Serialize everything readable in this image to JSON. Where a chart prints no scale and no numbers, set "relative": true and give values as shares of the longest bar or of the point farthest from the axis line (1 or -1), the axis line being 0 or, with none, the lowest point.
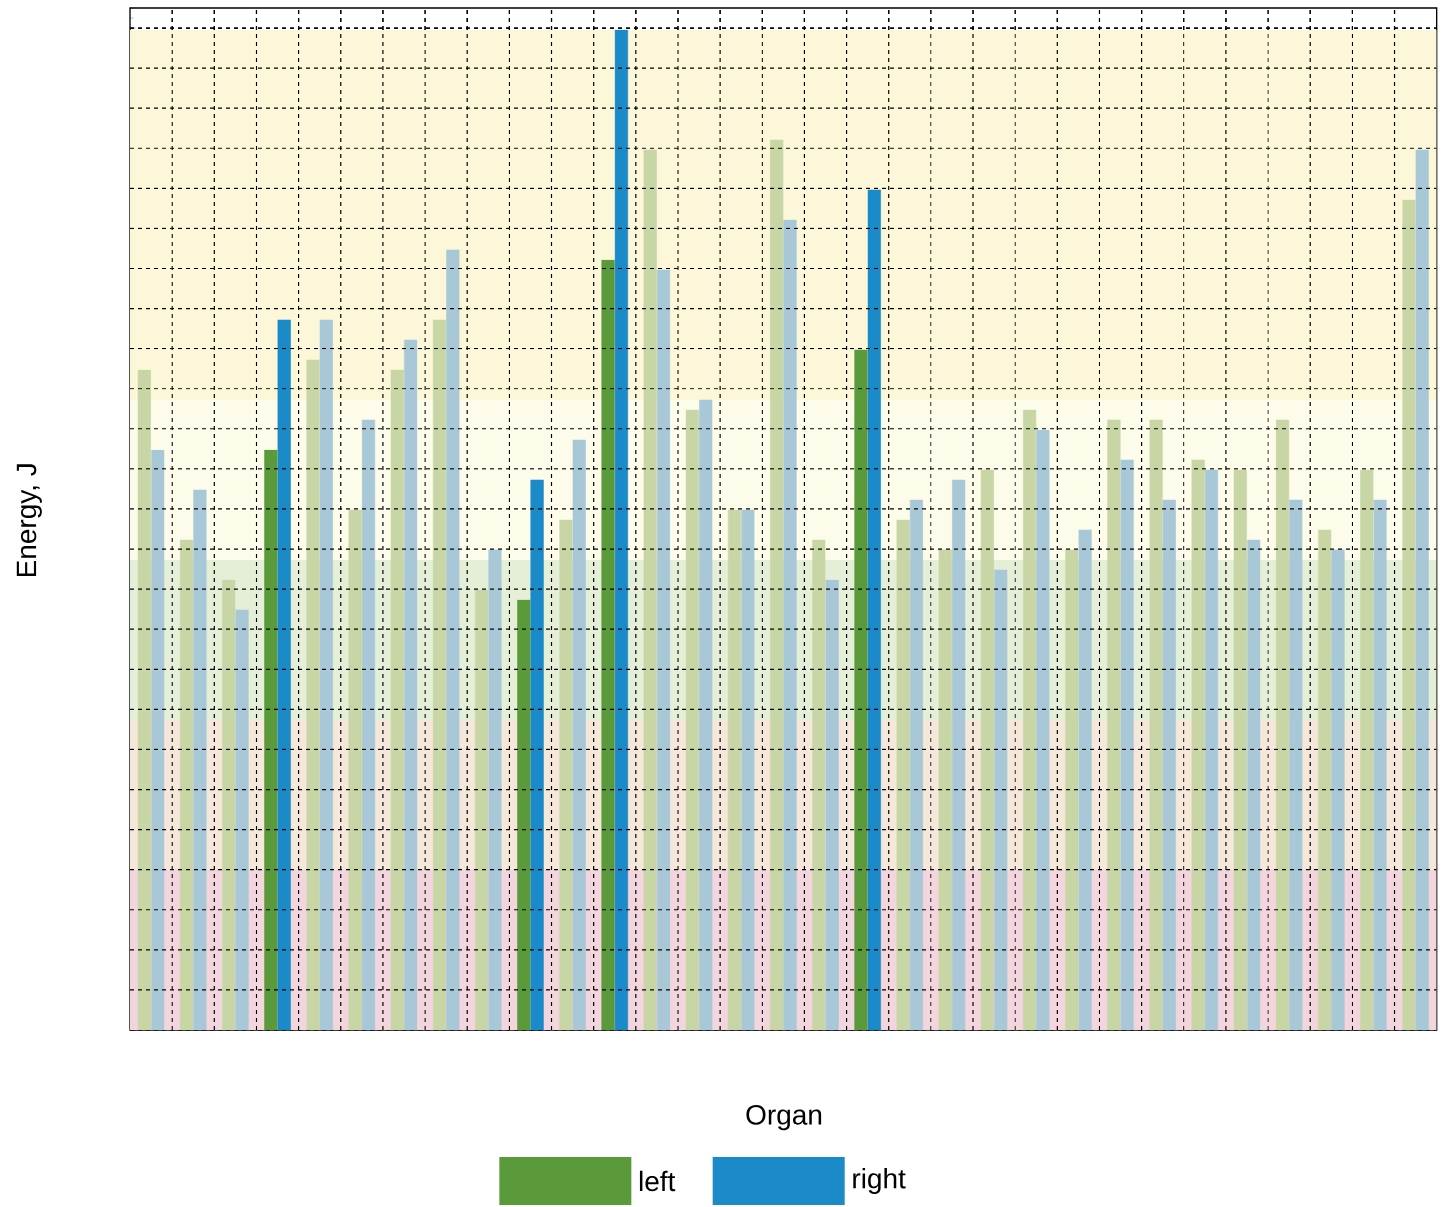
{
  "chart_data": {
    "type": "bar",
    "relative": true,
    "ylabel": "Energy, J",
    "legend_title": "Organ",
    "legend": "bottom",
    "grid": true,
    "categories": [
      null,
      null,
      null,
      null,
      null,
      null,
      null,
      null,
      null,
      null,
      null,
      null,
      null,
      null,
      null,
      null,
      null,
      null,
      null,
      null,
      null,
      null,
      null,
      null,
      null,
      null,
      null,
      null,
      null,
      null,
      null
    ],
    "series": [
      {
        "name": "left",
        "color": "#5a9a3a",
        "values": [
          0.66,
          0.49,
          0.45,
          0.58,
          0.67,
          0.52,
          0.66,
          0.71,
          0.44,
          0.43,
          0.51,
          0.77,
          0.88,
          0.62,
          0.52,
          0.89,
          0.49,
          0.68,
          0.51,
          0.48,
          0.56,
          0.62,
          0.48,
          0.61,
          0.61,
          0.57,
          0.56,
          0.61,
          0.5,
          0.56,
          0.83
        ],
        "colors": [
          "#c8d6a6",
          "#c8d6a6",
          "#c8d6a6",
          "#5a9a3a",
          "#c8d6a6",
          "#c8d6a6",
          "#c8d6a6",
          "#c8d6a6",
          "#c8d6a6",
          "#5a9a3a",
          "#c8d6a6",
          "#5a9a3a",
          "#c8d6a6",
          "#c8d6a6",
          "#c8d6a6",
          "#c8d6a6",
          "#c8d6a6",
          "#5a9a3a",
          "#c8d6a6",
          "#c8d6a6",
          "#c8d6a6",
          "#c8d6a6",
          "#c8d6a6",
          "#c8d6a6",
          "#c8d6a6",
          "#c8d6a6",
          "#c8d6a6",
          "#c8d6a6",
          "#c8d6a6",
          "#c8d6a6",
          "#c8d6a6"
        ]
      },
      {
        "name": "right",
        "color": "#1a8ac8",
        "values": [
          0.58,
          0.54,
          0.42,
          0.71,
          0.71,
          0.61,
          0.69,
          0.78,
          0.48,
          0.55,
          0.59,
          1,
          0.76,
          0.63,
          0.52,
          0.81,
          0.45,
          0.84,
          0.53,
          0.55,
          0.46,
          0.6,
          0.5,
          0.57,
          0.53,
          0.56,
          0.49,
          0.53,
          0.48,
          0.53,
          0.88
        ],
        "colors": [
          "#a8c8d8",
          "#a8c8d8",
          "#a8c8d8",
          "#1a8ac8",
          "#a8c8d8",
          "#a8c8d8",
          "#a8c8d8",
          "#a8c8d8",
          "#a8c8d8",
          "#1a8ac8",
          "#a8c8d8",
          "#1a8ac8",
          "#a8c8d8",
          "#a8c8d8",
          "#a8c8d8",
          "#a8c8d8",
          "#a8c8d8",
          "#1a8ac8",
          "#a8c8d8",
          "#a8c8d8",
          "#a8c8d8",
          "#a8c8d8",
          "#a8c8d8",
          "#a8c8d8",
          "#a8c8d8",
          "#a8c8d8",
          "#a8c8d8",
          "#a8c8d8",
          "#a8c8d8",
          "#a8c8d8",
          "#a8c8d8"
        ]
      }
    ],
    "bands": [
      {
        "axis": "y",
        "from": 0,
        "to": 0.16,
        "color": "#f3d5dd"
      },
      {
        "axis": "y",
        "from": 0.16,
        "to": 0.31,
        "color": "#f5e7d9"
      },
      {
        "axis": "y",
        "from": 0.31,
        "to": 0.47,
        "color": "#e5efd8"
      },
      {
        "axis": "y",
        "from": 0.47,
        "to": 0.63,
        "color": "#fdfbea"
      },
      {
        "axis": "y",
        "from": 0.63,
        "to": 1,
        "color": "#fbf7d8"
      }
    ]
  }
}
